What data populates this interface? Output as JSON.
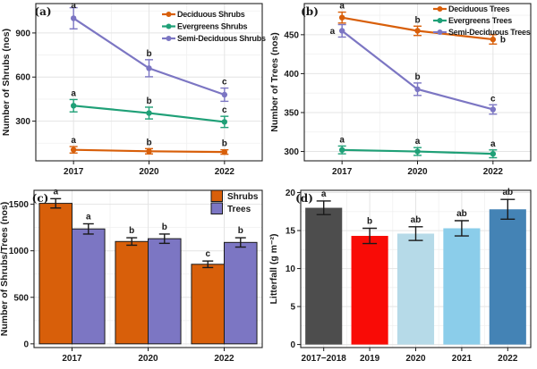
{
  "figure": {
    "description": "Four-panel vegetation survey figure",
    "panel_tags": [
      "(a)",
      "(b)",
      "(c)",
      "(d)"
    ]
  },
  "chart_data": [
    {
      "panel": "a",
      "panel_label": "(a)",
      "type": "line",
      "ylabel": "Number of Shrubs (nos)",
      "xlabel": "",
      "x_categories": [
        "2017",
        "2020",
        "2022"
      ],
      "ylim": [
        30,
        1100
      ],
      "yticks": [
        300,
        600,
        900
      ],
      "grid": true,
      "legend_position": "top-right-inside",
      "series": [
        {
          "name": "Deciduous Shrubs",
          "color": "#D85F0A",
          "values": [
            105,
            95,
            90
          ],
          "errors": [
            22,
            18,
            15
          ],
          "letters": [
            "a",
            "b",
            "b"
          ]
        },
        {
          "name": "Evergreens Shrubs",
          "color": "#1FA077",
          "values": [
            405,
            355,
            295
          ],
          "errors": [
            42,
            40,
            38
          ],
          "letters": [
            "a",
            "b",
            "c"
          ]
        },
        {
          "name": "Semi-Deciduous Shrubs",
          "color": "#7C76C3",
          "values": [
            1000,
            660,
            480
          ],
          "errors": [
            72,
            58,
            45
          ],
          "letters": [
            "a",
            "b",
            "c"
          ]
        }
      ]
    },
    {
      "panel": "b",
      "panel_label": "(b)",
      "type": "line",
      "ylabel": "Number of Trees (nos)",
      "xlabel": "",
      "x_categories": [
        "2017",
        "2020",
        "2022"
      ],
      "ylim": [
        288,
        490
      ],
      "yticks": [
        300,
        350,
        400,
        450
      ],
      "grid": true,
      "legend_position": "top-right-inside",
      "series": [
        {
          "name": "Deciduous Trees",
          "color": "#D85F0A",
          "values": [
            472,
            455,
            444
          ],
          "errors": [
            7,
            6,
            6
          ],
          "letters": [
            "a",
            "b",
            "b"
          ],
          "letter_side": [
            "above",
            "above",
            "right"
          ]
        },
        {
          "name": "Evergreens Trees",
          "color": "#1FA077",
          "values": [
            302,
            300,
            297
          ],
          "errors": [
            5,
            5,
            5
          ],
          "letters": [
            "a",
            "a",
            "a"
          ]
        },
        {
          "name": "Semi-Deciduous Trees",
          "color": "#7C76C3",
          "values": [
            455,
            380,
            354
          ],
          "errors": [
            8,
            8,
            6
          ],
          "letters": [
            "a",
            "b",
            "c"
          ],
          "letter_side": [
            "left",
            "above",
            "above"
          ]
        }
      ]
    },
    {
      "panel": "c",
      "panel_label": "(c)",
      "type": "bar",
      "ylabel": "Number of Shrubs/Trees (nos)",
      "xlabel": "",
      "x_categories": [
        "2017",
        "2020",
        "2022"
      ],
      "ylim": [
        -40,
        1650
      ],
      "yticks": [
        0,
        500,
        1000,
        1500
      ],
      "grid": true,
      "legend_position": "top-right-inside",
      "series": [
        {
          "name": "Shrubs",
          "color": "#D85F0A",
          "values": [
            1510,
            1100,
            855
          ],
          "errors": [
            50,
            40,
            35
          ],
          "letters": [
            "a",
            "b",
            "c"
          ]
        },
        {
          "name": "Trees",
          "color": "#7C76C3",
          "values": [
            1235,
            1130,
            1090
          ],
          "errors": [
            55,
            50,
            50
          ],
          "letters": [
            "a",
            "b",
            "b"
          ]
        }
      ]
    },
    {
      "panel": "d",
      "panel_label": "(d)",
      "type": "bar",
      "ylabel": "Litterfall (g m⁻²)",
      "xlabel": "",
      "x_categories": [
        "2017−2018",
        "2019",
        "2020",
        "2021",
        "2022"
      ],
      "ylim": [
        -0.4,
        20.3
      ],
      "yticks": [
        0,
        5,
        10,
        15,
        20
      ],
      "grid": true,
      "legend_position": "none",
      "series": [
        {
          "name": "Litterfall",
          "colors": [
            "#4D4D4D",
            "#F90B06",
            "#B6DAE8",
            "#8BCDEA",
            "#4483B5"
          ],
          "values": [
            18.0,
            14.3,
            14.6,
            15.3,
            17.8
          ],
          "errors": [
            0.9,
            1.0,
            0.9,
            1.0,
            1.3
          ],
          "letters": [
            "a",
            "b",
            "ab",
            "ab",
            "ab"
          ]
        }
      ]
    }
  ]
}
